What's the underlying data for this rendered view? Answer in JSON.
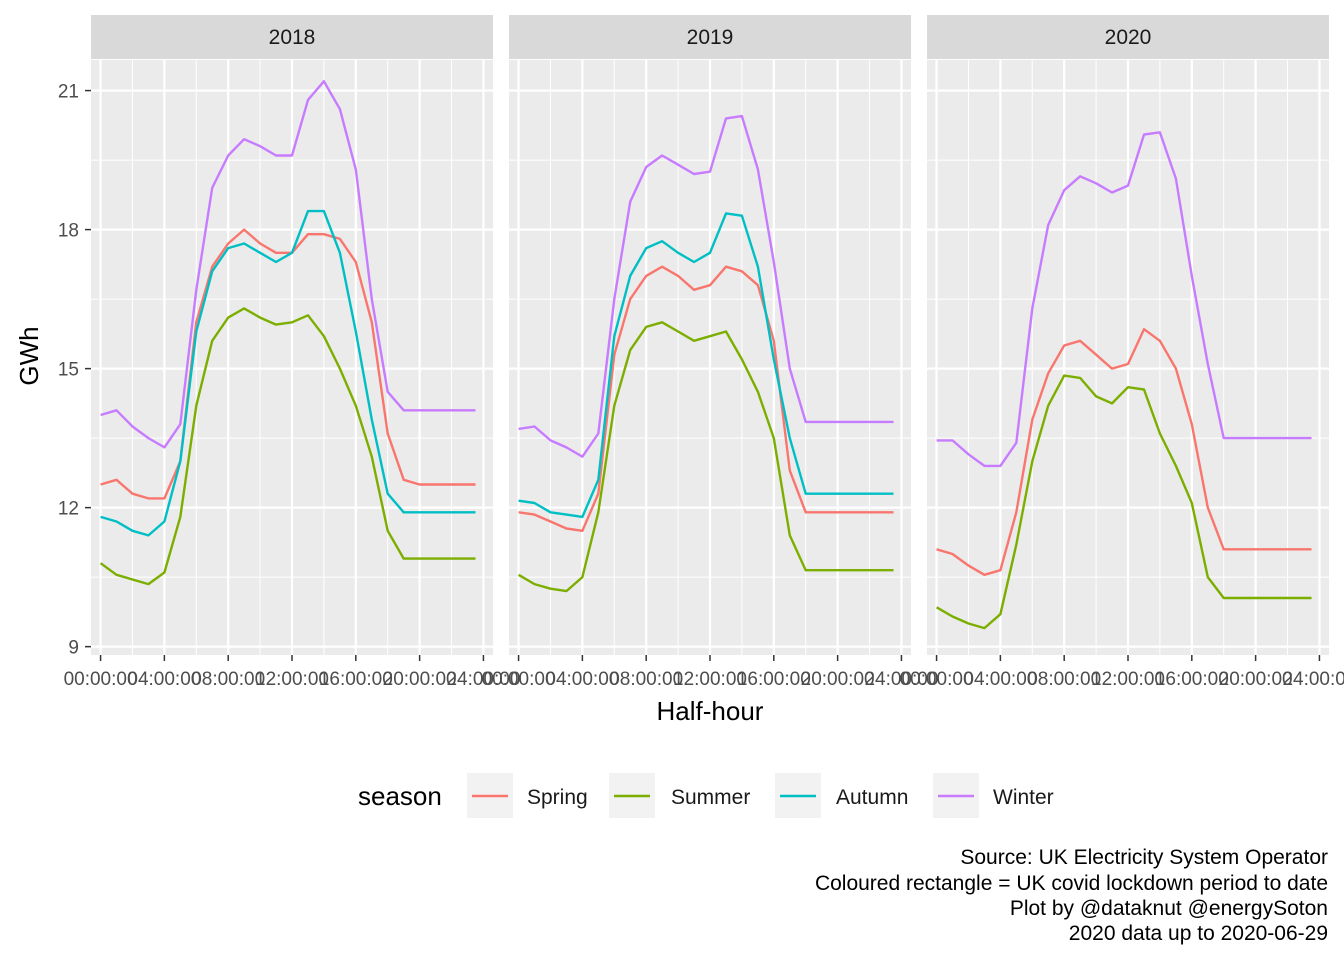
{
  "chart_data": {
    "type": "line",
    "facets": [
      "2018",
      "2019",
      "2020"
    ],
    "x_ticks": [
      "00:00:00",
      "04:00:00",
      "08:00:00",
      "12:00:00",
      "16:00:00",
      "20:00:00",
      "24:00:00"
    ],
    "x_hours": [
      0,
      4,
      8,
      12,
      16,
      20,
      24
    ],
    "xlim": [
      -0.6,
      24.6
    ],
    "y_ticks": [
      9,
      12,
      15,
      18,
      21
    ],
    "ylim": [
      8.82,
      21.66
    ],
    "xlabel": "Half-hour",
    "ylabel": "GWh",
    "legend": {
      "title": "season",
      "position": "bottom",
      "entries": [
        "Spring",
        "Summer",
        "Autumn",
        "Winter"
      ]
    },
    "colors": {
      "Spring": "#F8766D",
      "Summer": "#7CAE00",
      "Autumn": "#00BFC4",
      "Winter": "#C77CFF"
    },
    "x": [
      0,
      1,
      2,
      3,
      4,
      5,
      6,
      7,
      8,
      9,
      10,
      11,
      12,
      13,
      14,
      15,
      16,
      17,
      18,
      19,
      20,
      21,
      22,
      23,
      23.5
    ],
    "panels": [
      {
        "facet": "2018",
        "series": [
          {
            "name": "Spring",
            "values": [
              12.5,
              12.6,
              12.3,
              12.2,
              12.2,
              13.0,
              16.0,
              17.2,
              17.7,
              18.0,
              17.7,
              17.5,
              17.5,
              17.9,
              17.9,
              17.8,
              17.3,
              16.0,
              13.6,
              12.6,
              12.5,
              12.5,
              12.5,
              12.5,
              12.5
            ]
          },
          {
            "name": "Summer",
            "values": [
              10.8,
              10.55,
              10.45,
              10.35,
              10.6,
              11.8,
              14.2,
              15.6,
              16.1,
              16.3,
              16.1,
              15.95,
              16.0,
              16.15,
              15.7,
              15.0,
              14.2,
              13.1,
              11.5,
              10.9,
              10.9,
              10.9,
              10.9,
              10.9,
              10.9
            ]
          },
          {
            "name": "Autumn",
            "values": [
              11.8,
              11.7,
              11.5,
              11.4,
              11.7,
              13.0,
              15.8,
              17.1,
              17.6,
              17.7,
              17.5,
              17.3,
              17.5,
              18.4,
              18.4,
              17.5,
              15.8,
              13.9,
              12.3,
              11.9,
              11.9,
              11.9,
              11.9,
              11.9,
              11.9
            ]
          },
          {
            "name": "Winter",
            "values": [
              14.0,
              14.1,
              13.75,
              13.5,
              13.3,
              13.8,
              16.7,
              18.9,
              19.6,
              19.95,
              19.8,
              19.6,
              19.6,
              20.8,
              21.2,
              20.6,
              19.3,
              16.5,
              14.5,
              14.1,
              14.1,
              14.1,
              14.1,
              14.1,
              14.1
            ]
          }
        ]
      },
      {
        "facet": "2019",
        "series": [
          {
            "name": "Spring",
            "values": [
              11.9,
              11.85,
              11.7,
              11.55,
              11.5,
              12.3,
              15.3,
              16.5,
              17.0,
              17.2,
              17.0,
              16.7,
              16.8,
              17.2,
              17.1,
              16.8,
              15.6,
              12.8,
              11.9,
              11.9,
              11.9,
              11.9,
              11.9,
              11.9,
              11.9
            ]
          },
          {
            "name": "Summer",
            "values": [
              10.55,
              10.35,
              10.25,
              10.2,
              10.5,
              11.9,
              14.2,
              15.4,
              15.9,
              16.0,
              15.8,
              15.6,
              15.7,
              15.8,
              15.2,
              14.5,
              13.5,
              11.4,
              10.65,
              10.65,
              10.65,
              10.65,
              10.65,
              10.65,
              10.65
            ]
          },
          {
            "name": "Autumn",
            "values": [
              12.15,
              12.1,
              11.9,
              11.85,
              11.8,
              12.6,
              15.7,
              17.0,
              17.6,
              17.75,
              17.5,
              17.3,
              17.5,
              18.35,
              18.3,
              17.2,
              15.2,
              13.5,
              12.3,
              12.3,
              12.3,
              12.3,
              12.3,
              12.3,
              12.3
            ]
          },
          {
            "name": "Winter",
            "values": [
              13.7,
              13.75,
              13.45,
              13.3,
              13.1,
              13.6,
              16.5,
              18.6,
              19.35,
              19.6,
              19.4,
              19.2,
              19.25,
              20.4,
              20.45,
              19.3,
              17.3,
              15.0,
              13.85,
              13.85,
              13.85,
              13.85,
              13.85,
              13.85,
              13.85
            ]
          }
        ]
      },
      {
        "facet": "2020",
        "series": [
          {
            "name": "Spring",
            "values": [
              11.1,
              11.0,
              10.75,
              10.55,
              10.65,
              11.9,
              13.9,
              14.9,
              15.5,
              15.6,
              15.3,
              15.0,
              15.1,
              15.85,
              15.6,
              15.0,
              13.8,
              12.0,
              11.1,
              11.1,
              11.1,
              11.1,
              11.1,
              11.1,
              11.1
            ]
          },
          {
            "name": "Summer",
            "values": [
              9.85,
              9.65,
              9.5,
              9.4,
              9.7,
              11.2,
              13.0,
              14.2,
              14.85,
              14.8,
              14.4,
              14.25,
              14.6,
              14.55,
              13.6,
              12.9,
              12.1,
              10.5,
              10.05,
              10.05,
              10.05,
              10.05,
              10.05,
              10.05,
              10.05
            ]
          },
          {
            "name": "Winter",
            "values": [
              13.45,
              13.45,
              13.15,
              12.9,
              12.9,
              13.4,
              16.3,
              18.1,
              18.85,
              19.15,
              19.0,
              18.8,
              18.95,
              20.05,
              20.1,
              19.1,
              17.0,
              15.1,
              13.5,
              13.5,
              13.5,
              13.5,
              13.5,
              13.5,
              13.5
            ]
          }
        ]
      }
    ]
  },
  "caption": [
    "Source: UK Electricity System Operator",
    "Coloured rectangle = UK covid lockdown period to date",
    "Plot by @dataknut @energySoton",
    "2020 data up to 2020-06-29"
  ]
}
